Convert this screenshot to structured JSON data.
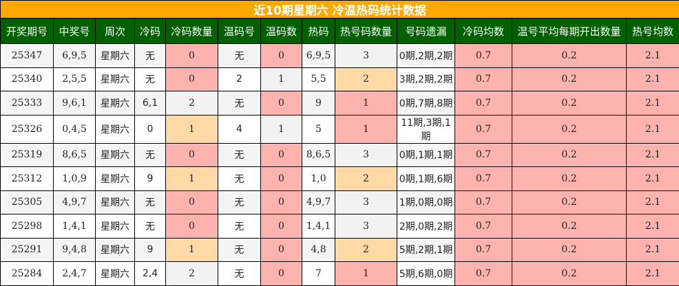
{
  "title": "近10期星期六 冷温热码统计数据",
  "colors": {
    "title_bg": "#ffa800",
    "header_bg": "#006000",
    "pink": "#ffb3ae",
    "peach": "#ffd9a6",
    "gray": "#f2f2f2"
  },
  "columns": [
    {
      "key": "issue",
      "label": "开奖期号"
    },
    {
      "key": "numbers",
      "label": "中奖号"
    },
    {
      "key": "weekday",
      "label": "周次"
    },
    {
      "key": "cold",
      "label": "冷码"
    },
    {
      "key": "cold_count",
      "label": "冷码数量"
    },
    {
      "key": "warm",
      "label": "温码号"
    },
    {
      "key": "warm_count",
      "label": "温码数"
    },
    {
      "key": "hot",
      "label": "热码"
    },
    {
      "key": "hot_count",
      "label": "热号码数量"
    },
    {
      "key": "miss",
      "label": "号码遗漏"
    },
    {
      "key": "cold_avg",
      "label": "冷码均数"
    },
    {
      "key": "warm_avg",
      "label": "温号平均每期开出数量"
    },
    {
      "key": "hot_avg",
      "label": "热号均数"
    }
  ],
  "highlight": {
    "cold_count": {
      "0": "pink",
      "1": "peach",
      "2": "gray"
    },
    "warm_count": {
      "0": "pink",
      "1": "gray"
    },
    "hot_count": {
      "1": "pink",
      "2": "peach",
      "3": "gray"
    },
    "cold_avg": {
      "*": "pink"
    },
    "warm_avg": {
      "*": "pink"
    },
    "hot_avg": {
      "*": "pink"
    }
  },
  "rows": [
    {
      "issue": "25347",
      "numbers": "6,9,5",
      "weekday": "星期六",
      "cold": "无",
      "cold_count": "0",
      "warm": "无",
      "warm_count": "0",
      "hot": "6,9,5",
      "hot_count": "3",
      "miss": "0期,2期,2期",
      "cold_avg": "0.7",
      "warm_avg": "0.2",
      "hot_avg": "2.1"
    },
    {
      "issue": "25340",
      "numbers": "2,5,5",
      "weekday": "星期六",
      "cold": "无",
      "cold_count": "0",
      "warm": "2",
      "warm_count": "1",
      "hot": "5,5",
      "hot_count": "2",
      "miss": "3期,2期,2期",
      "cold_avg": "0.7",
      "warm_avg": "0.2",
      "hot_avg": "2.1"
    },
    {
      "issue": "25333",
      "numbers": "9,6,1",
      "weekday": "星期六",
      "cold": "6,1",
      "cold_count": "2",
      "warm": "无",
      "warm_count": "0",
      "hot": "9",
      "hot_count": "1",
      "miss": "0期,7期,8期",
      "cold_avg": "0.7",
      "warm_avg": "0.2",
      "hot_avg": "2.1"
    },
    {
      "issue": "25326",
      "numbers": "0,4,5",
      "weekday": "星期六",
      "cold": "0",
      "cold_count": "1",
      "warm": "4",
      "warm_count": "1",
      "hot": "5",
      "hot_count": "1",
      "miss": "11期,3期,1期",
      "cold_avg": "0.7",
      "warm_avg": "0.2",
      "hot_avg": "2.1"
    },
    {
      "issue": "25319",
      "numbers": "8,6,5",
      "weekday": "星期六",
      "cold": "无",
      "cold_count": "0",
      "warm": "无",
      "warm_count": "0",
      "hot": "8,6,5",
      "hot_count": "3",
      "miss": "0期,1期,1期",
      "cold_avg": "0.7",
      "warm_avg": "0.2",
      "hot_avg": "2.1"
    },
    {
      "issue": "25312",
      "numbers": "1,0,9",
      "weekday": "星期六",
      "cold": "9",
      "cold_count": "1",
      "warm": "无",
      "warm_count": "0",
      "hot": "1,0",
      "hot_count": "2",
      "miss": "0期,1期,6期",
      "cold_avg": "0.7",
      "warm_avg": "0.2",
      "hot_avg": "2.1"
    },
    {
      "issue": "25305",
      "numbers": "4,9,7",
      "weekday": "星期六",
      "cold": "无",
      "cold_count": "0",
      "warm": "无",
      "warm_count": "0",
      "hot": "4,9,7",
      "hot_count": "3",
      "miss": "1期,0期,0期",
      "cold_avg": "0.7",
      "warm_avg": "0.2",
      "hot_avg": "2.1"
    },
    {
      "issue": "25298",
      "numbers": "1,4,1",
      "weekday": "星期六",
      "cold": "无",
      "cold_count": "0",
      "warm": "无",
      "warm_count": "0",
      "hot": "1,4,1",
      "hot_count": "3",
      "miss": "2期,0期,2期",
      "cold_avg": "0.7",
      "warm_avg": "0.2",
      "hot_avg": "2.1"
    },
    {
      "issue": "25291",
      "numbers": "9,4,8",
      "weekday": "星期六",
      "cold": "9",
      "cold_count": "1",
      "warm": "无",
      "warm_count": "0",
      "hot": "4,8",
      "hot_count": "2",
      "miss": "5期,2期,1期",
      "cold_avg": "0.7",
      "warm_avg": "0.2",
      "hot_avg": "2.1"
    },
    {
      "issue": "25284",
      "numbers": "2,4,7",
      "weekday": "星期六",
      "cold": "2,4",
      "cold_count": "2",
      "warm": "无",
      "warm_count": "0",
      "hot": "7",
      "hot_count": "1",
      "miss": "5期,6期,0期",
      "cold_avg": "0.7",
      "warm_avg": "0.2",
      "hot_avg": "2.1"
    }
  ]
}
